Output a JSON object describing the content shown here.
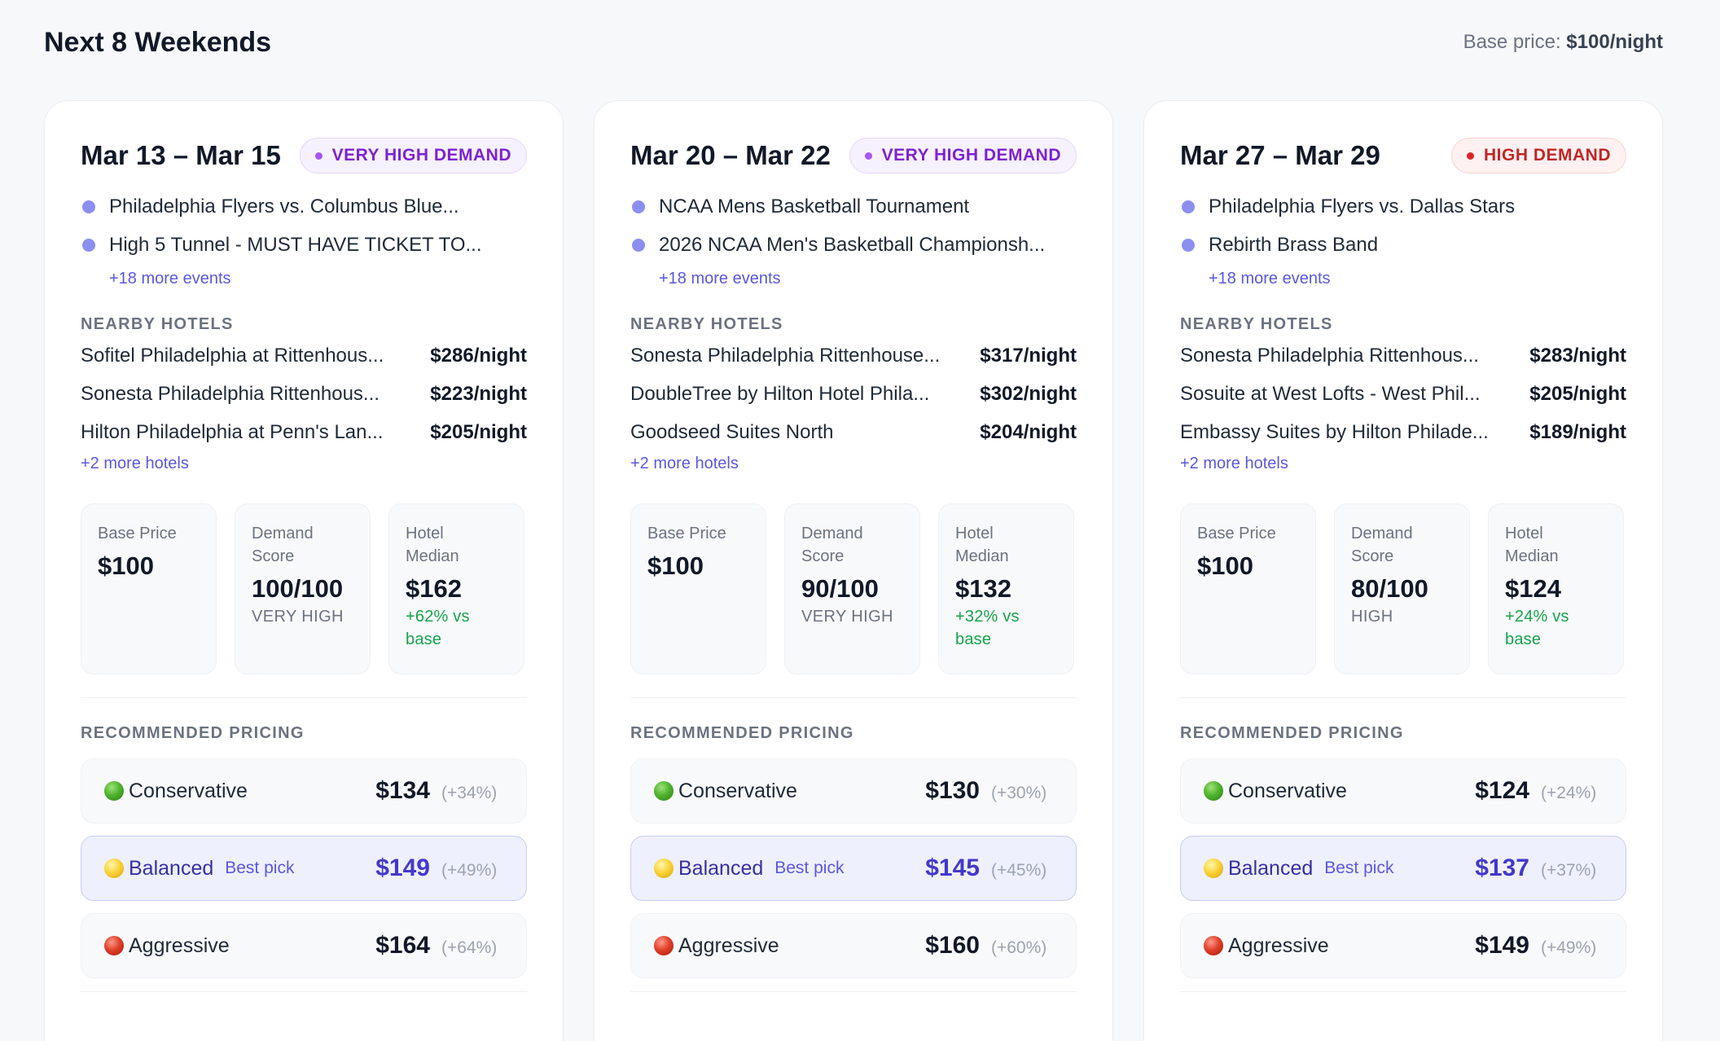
{
  "header": {
    "title": "Next 8 Weekends",
    "base_price_label": "Base price:",
    "base_price_value": "$100/night"
  },
  "colors": {
    "very_high_badge": "#7e22ce",
    "high_badge": "#c02626",
    "event_dot": "#8b8ff0",
    "link": "#5b57e0",
    "positive": "#16a34a",
    "balanced_bg": "#eef0fe"
  },
  "labels": {
    "nearby_hotels": "NEARBY HOTELS",
    "recommended_pricing": "RECOMMENDED PRICING",
    "base_price_1": "Base Price",
    "demand_1": "Demand",
    "demand_2": "Score",
    "hotel_1": "Hotel",
    "hotel_2": "Median",
    "best_pick": "Best pick",
    "conservative": "Conservative",
    "balanced": "Balanced",
    "aggressive": "Aggressive",
    "vs_base_2": "base"
  },
  "icons": {
    "conservative": "green-circle-icon",
    "balanced": "yellow-circle-icon",
    "aggressive": "red-circle-icon"
  },
  "weekends": [
    {
      "date": "Mar 13 – Mar 15",
      "demand_badge": "VERY HIGH DEMAND",
      "events": [
        "Philadelphia Flyers vs. Columbus Blue...",
        "High 5 Tunnel - MUST HAVE TICKET TO..."
      ],
      "more_events": "+18 more events",
      "hotels": [
        {
          "name": "Sofitel Philadelphia at Rittenhous...",
          "price": "$286/night"
        },
        {
          "name": "Sonesta Philadelphia Rittenhous...",
          "price": "$223/night"
        },
        {
          "name": "Hilton Philadelphia at Penn's Lan...",
          "price": "$205/night"
        }
      ],
      "more_hotels": "+2 more hotels",
      "base_price": "$100",
      "demand_score": "100/100",
      "demand_level": "VERY HIGH",
      "hotel_median": "$162",
      "vs_base": "+62% vs",
      "pricing": {
        "conservative": {
          "price": "$134",
          "pct": "(+34%)"
        },
        "balanced": {
          "price": "$149",
          "pct": "(+49%)"
        },
        "aggressive": {
          "price": "$164",
          "pct": "(+64%)"
        }
      }
    },
    {
      "date": "Mar 20 – Mar 22",
      "demand_badge": "VERY HIGH DEMAND",
      "events": [
        "NCAA Mens Basketball Tournament",
        "2026 NCAA Men's Basketball Championsh..."
      ],
      "more_events": "+18 more events",
      "hotels": [
        {
          "name": "Sonesta Philadelphia Rittenhouse...",
          "price": "$317/night"
        },
        {
          "name": "DoubleTree by Hilton Hotel Phila...",
          "price": "$302/night"
        },
        {
          "name": "Goodseed Suites North",
          "price": "$204/night"
        }
      ],
      "more_hotels": "+2 more hotels",
      "base_price": "$100",
      "demand_score": "90/100",
      "demand_level": "VERY HIGH",
      "hotel_median": "$132",
      "vs_base": "+32% vs",
      "pricing": {
        "conservative": {
          "price": "$130",
          "pct": "(+30%)"
        },
        "balanced": {
          "price": "$145",
          "pct": "(+45%)"
        },
        "aggressive": {
          "price": "$160",
          "pct": "(+60%)"
        }
      }
    },
    {
      "date": "Mar 27 – Mar 29",
      "demand_badge": "HIGH DEMAND",
      "events": [
        "Philadelphia Flyers vs. Dallas Stars",
        "Rebirth Brass Band"
      ],
      "more_events": "+18 more events",
      "hotels": [
        {
          "name": "Sonesta Philadelphia Rittenhous...",
          "price": "$283/night"
        },
        {
          "name": "Sosuite at West Lofts - West Phil...",
          "price": "$205/night"
        },
        {
          "name": "Embassy Suites by Hilton Philade...",
          "price": "$189/night"
        }
      ],
      "more_hotels": "+2 more hotels",
      "base_price": "$100",
      "demand_score": "80/100",
      "demand_level": "HIGH",
      "hotel_median": "$124",
      "vs_base": "+24% vs",
      "pricing": {
        "conservative": {
          "price": "$124",
          "pct": "(+24%)"
        },
        "balanced": {
          "price": "$137",
          "pct": "(+37%)"
        },
        "aggressive": {
          "price": "$149",
          "pct": "(+49%)"
        }
      }
    }
  ]
}
